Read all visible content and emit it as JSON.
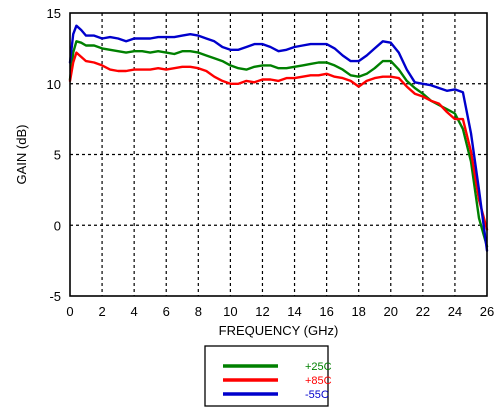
{
  "chart_data": {
    "type": "line",
    "title": "",
    "xlabel": "FREQUENCY (GHz)",
    "ylabel": "GAIN (dB)",
    "xlim": [
      0,
      26
    ],
    "ylim": [
      -5,
      15
    ],
    "xticks": [
      "0",
      "2",
      "4",
      "6",
      "8",
      "10",
      "12",
      "14",
      "16",
      "18",
      "20",
      "22",
      "24",
      "26"
    ],
    "yticks": [
      "-5",
      "0",
      "5",
      "10",
      "15"
    ],
    "grid": "dashed",
    "legend_position": "bottom-center",
    "series": [
      {
        "name": "+25C",
        "color": "#008000",
        "points": [
          [
            0,
            10.3
          ],
          [
            0.2,
            12.2
          ],
          [
            0.4,
            13.0
          ],
          [
            0.7,
            12.9
          ],
          [
            1.0,
            12.7
          ],
          [
            1.5,
            12.7
          ],
          [
            2,
            12.5
          ],
          [
            2.5,
            12.4
          ],
          [
            3,
            12.3
          ],
          [
            3.5,
            12.2
          ],
          [
            4,
            12.3
          ],
          [
            4.5,
            12.3
          ],
          [
            5,
            12.2
          ],
          [
            5.5,
            12.3
          ],
          [
            6,
            12.2
          ],
          [
            6.5,
            12.1
          ],
          [
            7,
            12.3
          ],
          [
            7.5,
            12.3
          ],
          [
            8,
            12.2
          ],
          [
            8.5,
            12.0
          ],
          [
            9,
            11.8
          ],
          [
            9.5,
            11.6
          ],
          [
            10,
            11.3
          ],
          [
            10.5,
            11.1
          ],
          [
            11,
            11.0
          ],
          [
            11.5,
            11.2
          ],
          [
            12,
            11.3
          ],
          [
            12.5,
            11.3
          ],
          [
            13,
            11.1
          ],
          [
            13.5,
            11.1
          ],
          [
            14,
            11.2
          ],
          [
            14.5,
            11.3
          ],
          [
            15,
            11.4
          ],
          [
            15.5,
            11.5
          ],
          [
            16,
            11.5
          ],
          [
            16.5,
            11.3
          ],
          [
            17,
            11.0
          ],
          [
            17.5,
            10.6
          ],
          [
            18,
            10.5
          ],
          [
            18.5,
            10.7
          ],
          [
            19,
            11.1
          ],
          [
            19.5,
            11.6
          ],
          [
            20,
            11.6
          ],
          [
            20.5,
            11.0
          ],
          [
            21,
            10.2
          ],
          [
            21.5,
            9.7
          ],
          [
            22,
            9.3
          ],
          [
            22.5,
            8.8
          ],
          [
            23,
            8.5
          ],
          [
            23.5,
            8.2
          ],
          [
            24,
            7.9
          ],
          [
            24.5,
            6.8
          ],
          [
            25,
            4.5
          ],
          [
            25.5,
            0.5
          ],
          [
            26,
            -1.5
          ]
        ]
      },
      {
        "name": "+85C",
        "color": "#ff0000",
        "points": [
          [
            0,
            10.2
          ],
          [
            0.2,
            11.5
          ],
          [
            0.4,
            12.2
          ],
          [
            0.7,
            11.9
          ],
          [
            1.0,
            11.6
          ],
          [
            1.5,
            11.5
          ],
          [
            2,
            11.3
          ],
          [
            2.5,
            11.0
          ],
          [
            3,
            10.9
          ],
          [
            3.5,
            10.9
          ],
          [
            4,
            11.0
          ],
          [
            4.5,
            11.0
          ],
          [
            5,
            11.0
          ],
          [
            5.5,
            11.1
          ],
          [
            6,
            11.0
          ],
          [
            6.5,
            11.1
          ],
          [
            7,
            11.2
          ],
          [
            7.5,
            11.2
          ],
          [
            8,
            11.1
          ],
          [
            8.5,
            10.9
          ],
          [
            9,
            10.5
          ],
          [
            9.5,
            10.2
          ],
          [
            10,
            10.0
          ],
          [
            10.5,
            10.0
          ],
          [
            11,
            10.2
          ],
          [
            11.5,
            10.1
          ],
          [
            12,
            10.3
          ],
          [
            12.5,
            10.3
          ],
          [
            13,
            10.2
          ],
          [
            13.5,
            10.4
          ],
          [
            14,
            10.4
          ],
          [
            14.5,
            10.5
          ],
          [
            15,
            10.6
          ],
          [
            15.5,
            10.6
          ],
          [
            16,
            10.7
          ],
          [
            16.5,
            10.5
          ],
          [
            17,
            10.4
          ],
          [
            17.5,
            10.2
          ],
          [
            18,
            9.8
          ],
          [
            18.5,
            10.2
          ],
          [
            19,
            10.4
          ],
          [
            19.5,
            10.5
          ],
          [
            20,
            10.5
          ],
          [
            20.5,
            10.4
          ],
          [
            21,
            9.8
          ],
          [
            21.5,
            9.3
          ],
          [
            22,
            9.1
          ],
          [
            22.5,
            8.8
          ],
          [
            23,
            8.6
          ],
          [
            23.5,
            8.0
          ],
          [
            24,
            7.5
          ],
          [
            24.5,
            7.5
          ],
          [
            25,
            5.2
          ],
          [
            25.5,
            1.8
          ],
          [
            26,
            -0.3
          ]
        ]
      },
      {
        "name": "-55C",
        "color": "#0000cc",
        "points": [
          [
            0,
            11.5
          ],
          [
            0.2,
            13.5
          ],
          [
            0.4,
            14.1
          ],
          [
            0.7,
            13.8
          ],
          [
            1.0,
            13.4
          ],
          [
            1.5,
            13.4
          ],
          [
            2,
            13.2
          ],
          [
            2.5,
            13.3
          ],
          [
            3,
            13.2
          ],
          [
            3.5,
            13.0
          ],
          [
            4,
            13.2
          ],
          [
            4.5,
            13.2
          ],
          [
            5,
            13.2
          ],
          [
            5.5,
            13.3
          ],
          [
            6,
            13.3
          ],
          [
            6.5,
            13.3
          ],
          [
            7,
            13.4
          ],
          [
            7.5,
            13.5
          ],
          [
            8,
            13.4
          ],
          [
            8.5,
            13.2
          ],
          [
            9,
            13.0
          ],
          [
            9.5,
            12.6
          ],
          [
            10,
            12.4
          ],
          [
            10.5,
            12.4
          ],
          [
            11,
            12.6
          ],
          [
            11.5,
            12.8
          ],
          [
            12,
            12.8
          ],
          [
            12.5,
            12.6
          ],
          [
            13,
            12.3
          ],
          [
            13.5,
            12.4
          ],
          [
            14,
            12.6
          ],
          [
            14.5,
            12.7
          ],
          [
            15,
            12.8
          ],
          [
            15.5,
            12.8
          ],
          [
            16,
            12.8
          ],
          [
            16.5,
            12.5
          ],
          [
            17,
            12.0
          ],
          [
            17.5,
            11.6
          ],
          [
            18,
            11.6
          ],
          [
            18.5,
            12.0
          ],
          [
            19,
            12.5
          ],
          [
            19.5,
            13.0
          ],
          [
            20,
            12.9
          ],
          [
            20.5,
            12.2
          ],
          [
            21,
            11.0
          ],
          [
            21.5,
            10.1
          ],
          [
            22,
            10.0
          ],
          [
            22.5,
            9.9
          ],
          [
            23,
            9.7
          ],
          [
            23.5,
            9.5
          ],
          [
            24,
            9.6
          ],
          [
            24.5,
            9.4
          ],
          [
            25,
            6.5
          ],
          [
            25.5,
            2.5
          ],
          [
            26,
            -1.8
          ]
        ]
      }
    ]
  }
}
